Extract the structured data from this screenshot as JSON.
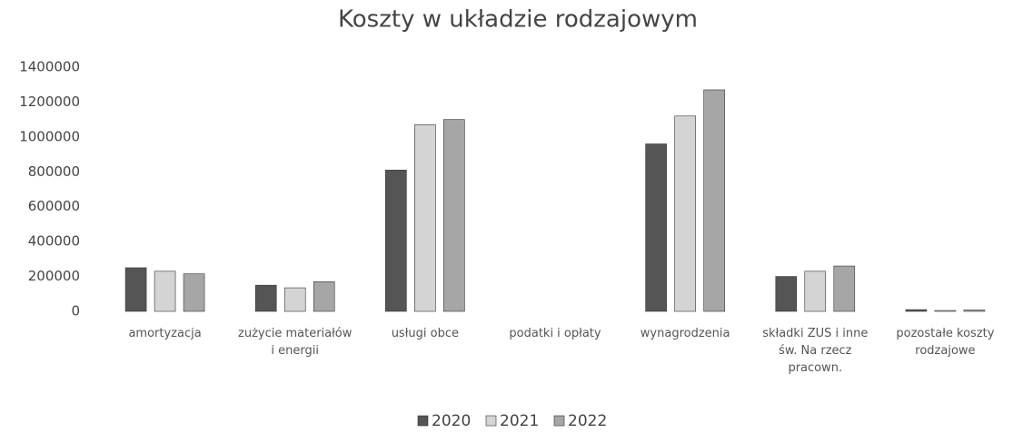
{
  "chart_data": {
    "type": "bar",
    "title": "Koszty w układzie rodzajowym",
    "categories": [
      "amortyzacja",
      "zużycie materiałów i energii",
      "usługi obce",
      "podatki i opłaty",
      "wynagrodzenia",
      "składki ZUS i inne św. Na rzecz pracown.",
      "pozostałe koszty rodzajowe"
    ],
    "series": [
      {
        "name": "2020",
        "color": "#555555",
        "values": [
          250000,
          150000,
          810000,
          0,
          960000,
          200000,
          10000
        ]
      },
      {
        "name": "2021",
        "color": "#d4d4d4",
        "values": [
          230000,
          135000,
          1070000,
          0,
          1120000,
          230000,
          5000
        ]
      },
      {
        "name": "2022",
        "color": "#a6a6a6",
        "values": [
          215000,
          170000,
          1100000,
          0,
          1270000,
          260000,
          8000
        ]
      }
    ],
    "ylim": [
      0,
      1400000
    ],
    "yticks": [
      0,
      200000,
      400000,
      600000,
      800000,
      1000000,
      1200000,
      1400000
    ],
    "grid": false,
    "legend": "bottom"
  }
}
